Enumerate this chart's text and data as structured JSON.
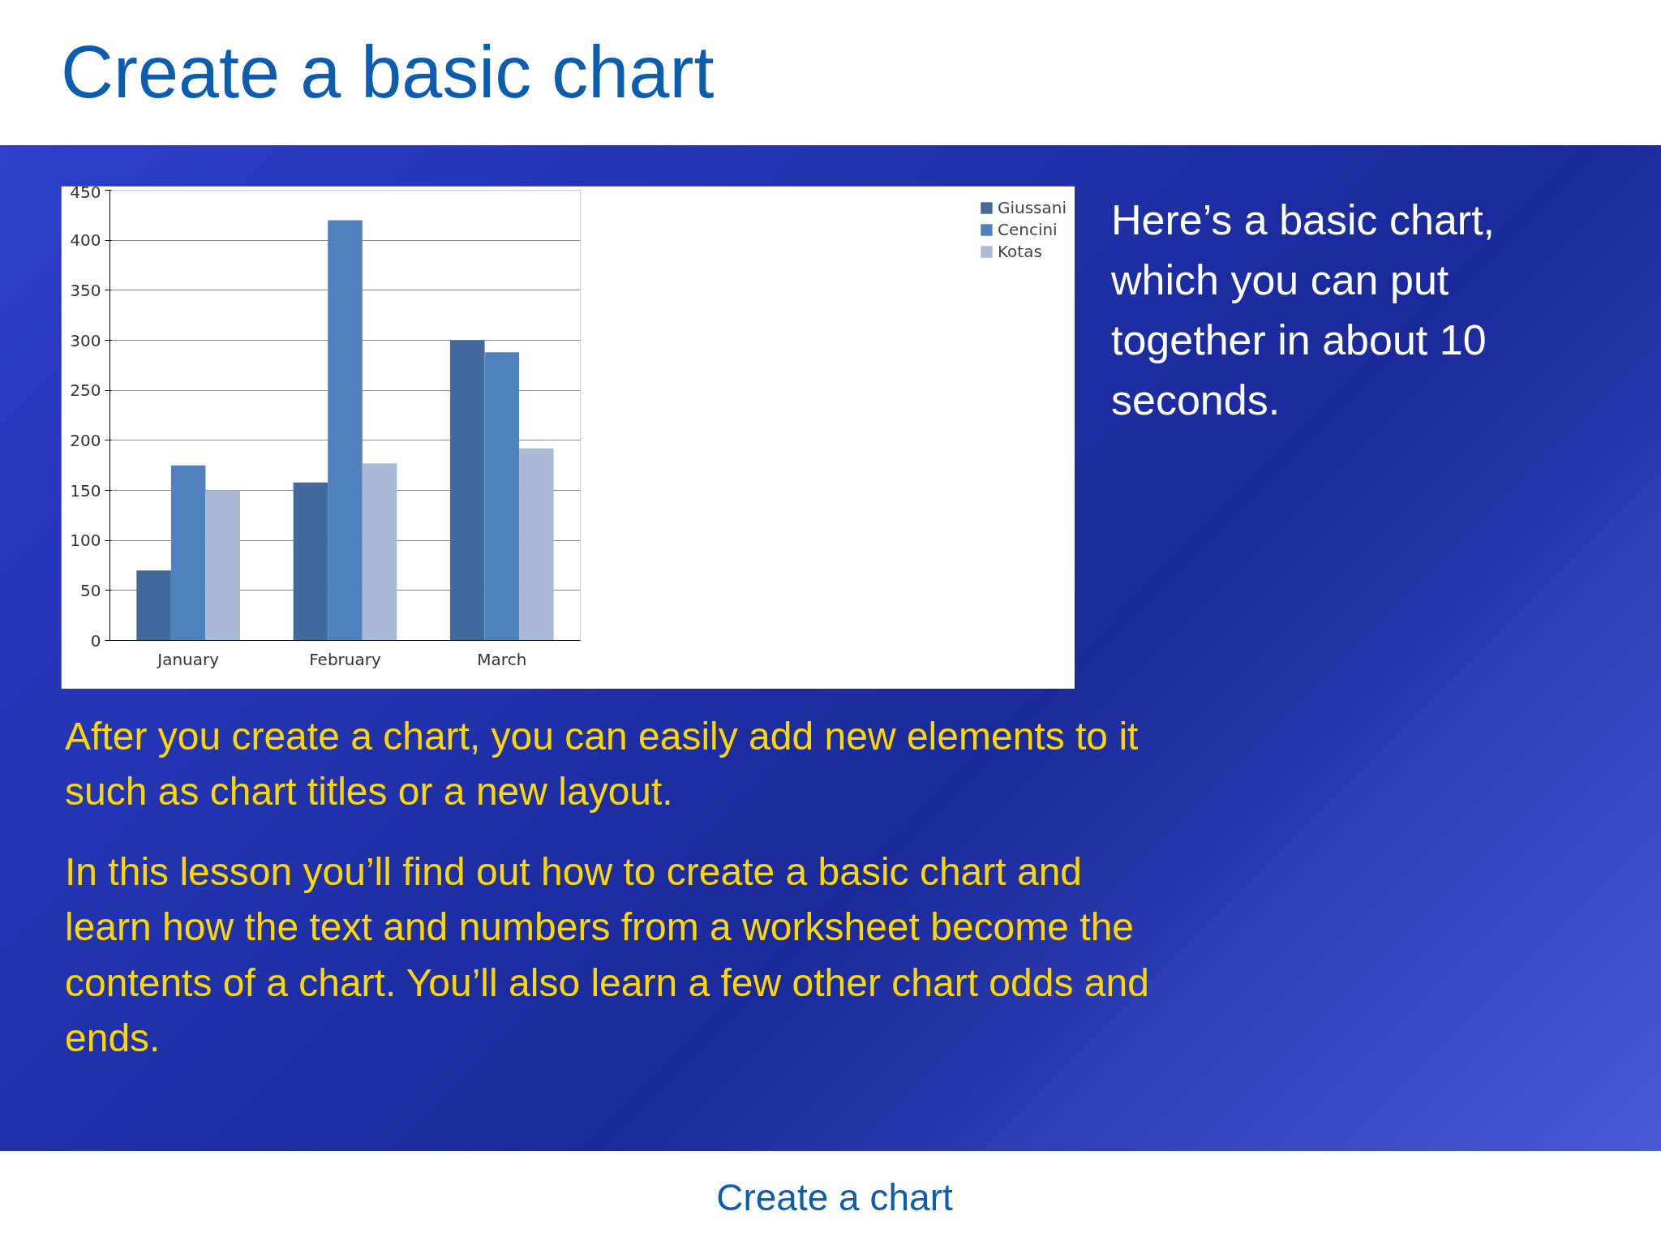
{
  "chart_data": {
    "type": "bar",
    "title": "Create a basic chart",
    "categories": [
      "January",
      "February",
      "March"
    ],
    "series": [
      {
        "name": "Giussani",
        "color": "#41699b",
        "values": [
          70,
          158,
          300
        ]
      },
      {
        "name": "Cencini",
        "color": "#4f81bd",
        "values": [
          175,
          420,
          288
        ]
      },
      {
        "name": "Kotas",
        "color": "#a9b9d6",
        "values": [
          150,
          177,
          192
        ]
      }
    ],
    "ylim": [
      0,
      450
    ],
    "yticks": [
      0,
      50,
      100,
      150,
      200,
      250,
      300,
      350,
      400,
      450
    ],
    "grid": "y",
    "legend": "right",
    "annotations": [
      "Here’s a basic chart, which you can put together in about 10 seconds.",
      "After you create a chart, you can easily add new elements to it such as chart titles or a new layout.",
      "In this lesson you’ll find out how to create a basic chart and learn how the text and numbers from a worksheet become the contents of a chart. You’ll also learn a few other chart odds and ends.",
      "Create a chart"
    ]
  }
}
